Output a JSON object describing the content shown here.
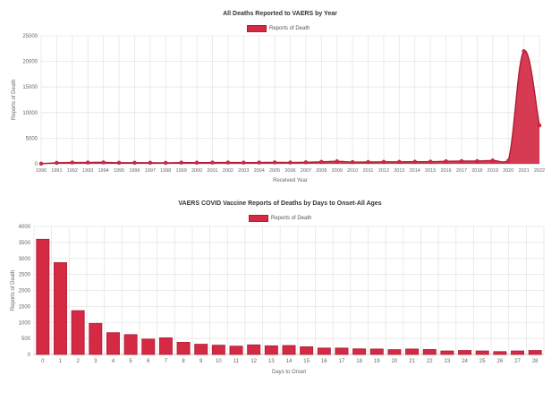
{
  "colors": {
    "bar": "#d42a44",
    "bar_border": "#b01c33",
    "grid": "#e6e6e6"
  },
  "chart_data": [
    {
      "type": "area",
      "title": "All Deaths Reported to VAERS by Year",
      "xlabel": "Received Year",
      "ylabel": "Reports of Death",
      "legend": {
        "label": "Reports of Death",
        "position": "top"
      },
      "ylim": [
        0,
        25000
      ],
      "yticks": [
        0,
        5000,
        10000,
        15000,
        20000,
        25000
      ],
      "grid": true,
      "categories": [
        "1990",
        "1991",
        "1992",
        "1993",
        "1994",
        "1995",
        "1996",
        "1997",
        "1998",
        "1999",
        "2000",
        "2001",
        "2002",
        "2003",
        "2004",
        "2005",
        "2006",
        "2007",
        "2008",
        "2009",
        "2010",
        "2011",
        "2012",
        "2013",
        "2014",
        "2015",
        "2016",
        "2017",
        "2018",
        "2019",
        "2020",
        "2021",
        "2022"
      ],
      "series": [
        {
          "name": "Reports of Death",
          "values": [
            30,
            190,
            250,
            260,
            280,
            200,
            210,
            200,
            180,
            230,
            220,
            240,
            250,
            230,
            250,
            280,
            260,
            290,
            380,
            480,
            340,
            350,
            380,
            390,
            410,
            420,
            490,
            530,
            540,
            650,
            600,
            22000,
            7500
          ]
        }
      ]
    },
    {
      "type": "bar",
      "title": "VAERS COVID Vaccine Reports of Deaths by Days to Onset-All Ages",
      "xlabel": "Days to Onset",
      "ylabel": "Reports of Death",
      "legend": {
        "label": "Reports of Death",
        "position": "top"
      },
      "ylim": [
        0,
        4000
      ],
      "yticks": [
        0,
        500,
        1000,
        1500,
        2000,
        2500,
        3000,
        3500,
        4000
      ],
      "grid": true,
      "categories": [
        "0",
        "1",
        "2",
        "3",
        "4",
        "5",
        "6",
        "7",
        "8",
        "9",
        "10",
        "11",
        "12",
        "13",
        "14",
        "15",
        "16",
        "17",
        "18",
        "19",
        "20",
        "21",
        "22",
        "23",
        "24",
        "25",
        "26",
        "27",
        "28"
      ],
      "series": [
        {
          "name": "Reports of Death",
          "values": [
            3600,
            2870,
            1370,
            970,
            680,
            620,
            480,
            520,
            380,
            320,
            290,
            260,
            300,
            270,
            280,
            240,
            200,
            200,
            175,
            170,
            150,
            170,
            155,
            110,
            125,
            110,
            90,
            110,
            125
          ]
        }
      ]
    }
  ]
}
